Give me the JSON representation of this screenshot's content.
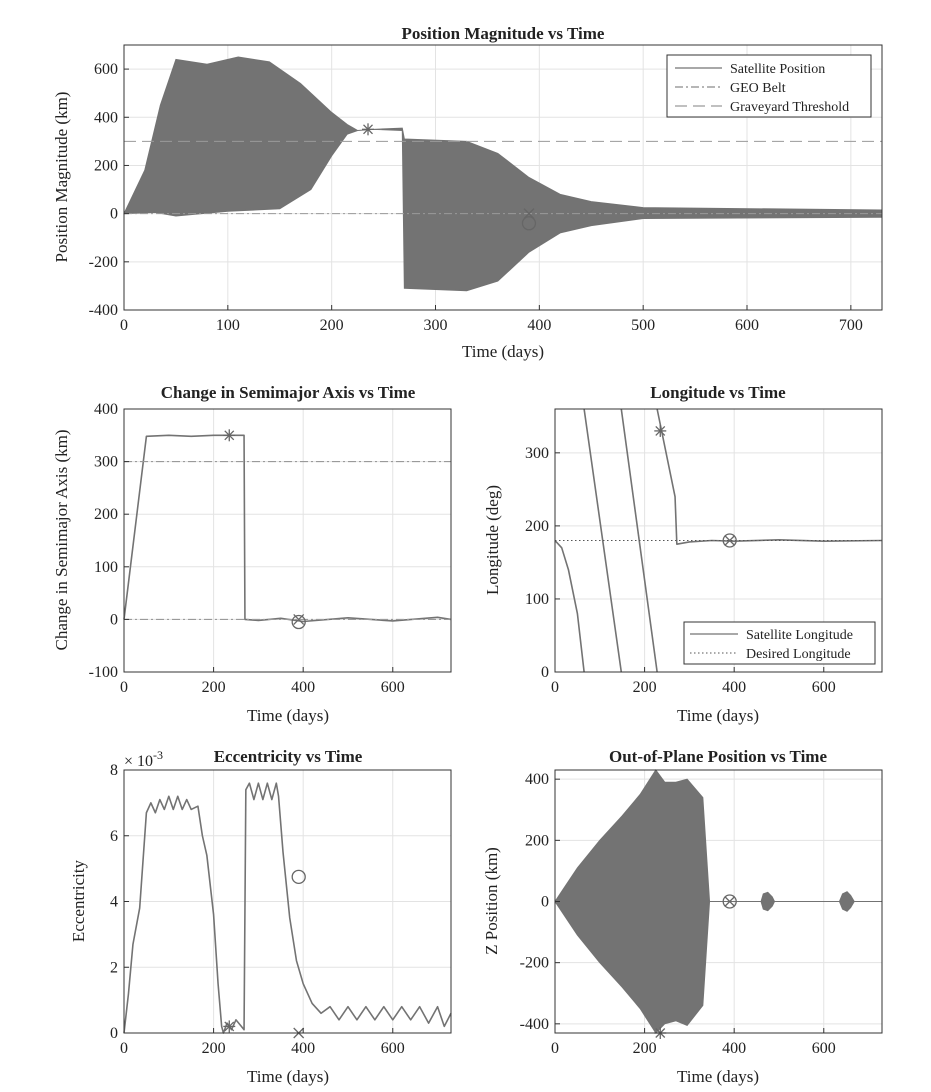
{
  "colors": {
    "series": "#737373",
    "reference": "#9a9a9a",
    "grid": "#e3e3e3",
    "axis": "#333333"
  },
  "chart_data": [
    {
      "id": "position",
      "type": "line",
      "title": "Position Magnitude vs Time",
      "xlabel": "Time (days)",
      "ylabel": "Position Magnitude (km)",
      "xlim": [
        0,
        730
      ],
      "ylim": [
        -400,
        700
      ],
      "xticks": [
        "0",
        "100",
        "200",
        "300",
        "400",
        "500",
        "600",
        "700"
      ],
      "xtick_values": [
        0,
        100,
        200,
        300,
        400,
        500,
        600,
        700
      ],
      "yticks": [
        "-400",
        "-200",
        "0",
        "200",
        "400",
        "600"
      ],
      "ytick_values": [
        -400,
        -200,
        0,
        200,
        400,
        600
      ],
      "grid": true,
      "legend": {
        "placement": "top-right",
        "entries": [
          "Satellite Position",
          "GEO Belt",
          "Graveyard Threshold"
        ]
      },
      "series": [
        {
          "name": "Satellite Position",
          "style": "band",
          "upper": [
            [
              0,
              0
            ],
            [
              20,
              180
            ],
            [
              35,
              450
            ],
            [
              50,
              640
            ],
            [
              80,
              620
            ],
            [
              110,
              650
            ],
            [
              140,
              630
            ],
            [
              170,
              540
            ],
            [
              200,
              420
            ],
            [
              215,
              370
            ],
            [
              225,
              345
            ],
            [
              240,
              350
            ],
            [
              268,
              355
            ],
            [
              270,
              310
            ],
            [
              330,
              300
            ],
            [
              360,
              250
            ],
            [
              390,
              150
            ],
            [
              420,
              80
            ],
            [
              450,
              50
            ],
            [
              500,
              25
            ],
            [
              730,
              15
            ]
          ],
          "lower": [
            [
              0,
              0
            ],
            [
              30,
              5
            ],
            [
              50,
              -10
            ],
            [
              100,
              10
            ],
            [
              150,
              20
            ],
            [
              180,
              100
            ],
            [
              200,
              240
            ],
            [
              215,
              330
            ],
            [
              225,
              345
            ],
            [
              240,
              350
            ],
            [
              268,
              345
            ],
            [
              270,
              -310
            ],
            [
              330,
              -320
            ],
            [
              360,
              -280
            ],
            [
              390,
              -160
            ],
            [
              420,
              -80
            ],
            [
              450,
              -50
            ],
            [
              500,
              -20
            ],
            [
              730,
              -15
            ]
          ]
        },
        {
          "name": "GEO Belt",
          "style": "dashdot",
          "y": 0
        },
        {
          "name": "Graveyard Threshold",
          "style": "dashed",
          "y": 300
        }
      ],
      "markers": [
        {
          "symbol": "asterisk",
          "x": 235,
          "y": 350
        },
        {
          "symbol": "x",
          "x": 390,
          "y": 0
        },
        {
          "symbol": "circle",
          "x": 390,
          "y": -40
        }
      ]
    },
    {
      "id": "semimajor",
      "type": "line",
      "title": "Change in Semimajor Axis vs Time",
      "xlabel": "Time (days)",
      "ylabel": "Change in Semimajor Axis (km)",
      "xlim": [
        0,
        730
      ],
      "ylim": [
        -100,
        400
      ],
      "xticks": [
        "0",
        "200",
        "400",
        "600"
      ],
      "xtick_values": [
        0,
        200,
        400,
        600
      ],
      "yticks": [
        "-100",
        "0",
        "100",
        "200",
        "300",
        "400"
      ],
      "ytick_values": [
        -100,
        0,
        100,
        200,
        300,
        400
      ],
      "grid": true,
      "series": [
        {
          "name": "",
          "style": "line",
          "points": [
            [
              0,
              0
            ],
            [
              50,
              348
            ],
            [
              100,
              350
            ],
            [
              150,
              348
            ],
            [
              200,
              350
            ],
            [
              268,
              350
            ],
            [
              270,
              0
            ],
            [
              300,
              -2
            ],
            [
              350,
              2
            ],
            [
              400,
              -4
            ],
            [
              500,
              3
            ],
            [
              600,
              -3
            ],
            [
              700,
              4
            ],
            [
              730,
              0
            ]
          ]
        },
        {
          "name": "",
          "style": "dashdot",
          "y": 0
        },
        {
          "name": "",
          "style": "dashdot",
          "y": 300
        }
      ],
      "markers": [
        {
          "symbol": "asterisk",
          "x": 235,
          "y": 350
        },
        {
          "symbol": "x",
          "x": 390,
          "y": 0
        },
        {
          "symbol": "circle",
          "x": 390,
          "y": -5
        }
      ]
    },
    {
      "id": "longitude",
      "type": "line",
      "title": "Longitude vs Time",
      "xlabel": "Time (days)",
      "ylabel": "Longitude (deg)",
      "xlim": [
        0,
        730
      ],
      "ylim": [
        0,
        360
      ],
      "xticks": [
        "0",
        "200",
        "400",
        "600"
      ],
      "xtick_values": [
        0,
        200,
        400,
        600
      ],
      "yticks": [
        "0",
        "100",
        "200",
        "300"
      ],
      "ytick_values": [
        0,
        100,
        200,
        300
      ],
      "grid": true,
      "legend": {
        "placement": "bottom-right",
        "entries": [
          "Satellite Longitude",
          "Desired Longitude"
        ]
      },
      "series": [
        {
          "name": "Satellite Longitude",
          "style": "line",
          "segments": [
            [
              [
                0,
                180
              ],
              [
                15,
                170
              ],
              [
                30,
                140
              ],
              [
                50,
                80
              ],
              [
                65,
                0
              ]
            ],
            [
              [
                65,
                360
              ],
              [
                148,
                0
              ]
            ],
            [
              [
                148,
                360
              ],
              [
                228,
                0
              ]
            ],
            [
              [
                228,
                360
              ],
              [
                268,
                240
              ],
              [
                272,
                175
              ],
              [
                300,
                178
              ],
              [
                350,
                180
              ],
              [
                400,
                179
              ],
              [
                500,
                181
              ],
              [
                600,
                179
              ],
              [
                730,
                180
              ]
            ]
          ]
        },
        {
          "name": "Desired Longitude",
          "style": "dotted",
          "y": 180
        }
      ],
      "markers": [
        {
          "symbol": "asterisk",
          "x": 235,
          "y": 330
        },
        {
          "symbol": "x",
          "x": 390,
          "y": 180
        },
        {
          "symbol": "circle",
          "x": 390,
          "y": 180
        }
      ]
    },
    {
      "id": "eccentricity",
      "type": "line",
      "title": "Eccentricity vs Time",
      "exponent_label": "× 10",
      "exponent_power": "-3",
      "xlabel": "Time (days)",
      "ylabel": "Eccentricity",
      "xlim": [
        0,
        730
      ],
      "ylim": [
        0,
        8
      ],
      "xticks": [
        "0",
        "200",
        "400",
        "600"
      ],
      "xtick_values": [
        0,
        200,
        400,
        600
      ],
      "yticks": [
        "0",
        "2",
        "4",
        "6",
        "8"
      ],
      "ytick_values": [
        0,
        2,
        4,
        6,
        8
      ],
      "grid": true,
      "series": [
        {
          "name": "",
          "style": "line",
          "points": [
            [
              0,
              0
            ],
            [
              10,
              1.2
            ],
            [
              20,
              2.7
            ],
            [
              35,
              3.8
            ],
            [
              50,
              6.7
            ],
            [
              60,
              7.0
            ],
            [
              70,
              6.7
            ],
            [
              80,
              7.1
            ],
            [
              90,
              6.8
            ],
            [
              100,
              7.2
            ],
            [
              110,
              6.8
            ],
            [
              120,
              7.2
            ],
            [
              130,
              6.8
            ],
            [
              140,
              7.1
            ],
            [
              150,
              6.8
            ],
            [
              165,
              6.9
            ],
            [
              175,
              6.0
            ],
            [
              185,
              5.4
            ],
            [
              200,
              3.6
            ],
            [
              210,
              1.5
            ],
            [
              218,
              0.2
            ],
            [
              222,
              0
            ],
            [
              230,
              0.3
            ],
            [
              240,
              0.1
            ],
            [
              250,
              0.4
            ],
            [
              262,
              0.2
            ],
            [
              268,
              0.1
            ],
            [
              272,
              7.4
            ],
            [
              280,
              7.6
            ],
            [
              290,
              7.1
            ],
            [
              300,
              7.6
            ],
            [
              310,
              7.1
            ],
            [
              320,
              7.6
            ],
            [
              330,
              7.1
            ],
            [
              340,
              7.6
            ],
            [
              345,
              7.2
            ],
            [
              355,
              5.5
            ],
            [
              370,
              3.5
            ],
            [
              385,
              2.2
            ],
            [
              400,
              1.5
            ],
            [
              420,
              0.9
            ],
            [
              440,
              0.6
            ],
            [
              460,
              0.8
            ],
            [
              480,
              0.4
            ],
            [
              500,
              0.8
            ],
            [
              520,
              0.4
            ],
            [
              540,
              0.8
            ],
            [
              560,
              0.4
            ],
            [
              580,
              0.8
            ],
            [
              600,
              0.4
            ],
            [
              620,
              0.8
            ],
            [
              640,
              0.4
            ],
            [
              660,
              0.8
            ],
            [
              680,
              0.3
            ],
            [
              700,
              0.8
            ],
            [
              715,
              0.2
            ],
            [
              730,
              0.6
            ]
          ]
        }
      ],
      "markers": [
        {
          "symbol": "asterisk",
          "x": 235,
          "y": 0.2
        },
        {
          "symbol": "x",
          "x": 390,
          "y": 0
        },
        {
          "symbol": "circle",
          "x": 390,
          "y": 4.75
        }
      ]
    },
    {
      "id": "outofplane",
      "type": "line",
      "title": "Out-of-Plane Position vs Time",
      "xlabel": "Time (days)",
      "ylabel": "Z Position (km)",
      "xlim": [
        0,
        730
      ],
      "ylim": [
        -430,
        430
      ],
      "xticks": [
        "0",
        "200",
        "400",
        "600"
      ],
      "xtick_values": [
        0,
        200,
        400,
        600
      ],
      "yticks": [
        "-400",
        "-200",
        "0",
        "200",
        "400"
      ],
      "ytick_values": [
        -400,
        -200,
        0,
        200,
        400
      ],
      "grid": true,
      "series": [
        {
          "name": "",
          "style": "band",
          "upper": [
            [
              0,
              0
            ],
            [
              50,
              110
            ],
            [
              100,
              200
            ],
            [
              150,
              280
            ],
            [
              190,
              350
            ],
            [
              225,
              430
            ],
            [
              245,
              390
            ],
            [
              270,
              390
            ],
            [
              295,
              400
            ],
            [
              330,
              340
            ],
            [
              345,
              0
            ],
            [
              730,
              0
            ]
          ],
          "lower": [
            [
              0,
              0
            ],
            [
              50,
              -110
            ],
            [
              100,
              -200
            ],
            [
              150,
              -280
            ],
            [
              190,
              -350
            ],
            [
              225,
              -430
            ],
            [
              245,
              -400
            ],
            [
              270,
              -390
            ],
            [
              295,
              -405
            ],
            [
              330,
              -340
            ],
            [
              345,
              0
            ],
            [
              730,
              0
            ]
          ]
        },
        {
          "name": "",
          "style": "band",
          "upper": [
            [
              460,
              0
            ],
            [
              465,
              25
            ],
            [
              475,
              30
            ],
            [
              485,
              15
            ],
            [
              490,
              0
            ]
          ],
          "lower": [
            [
              460,
              0
            ],
            [
              465,
              -25
            ],
            [
              475,
              -30
            ],
            [
              485,
              -15
            ],
            [
              490,
              0
            ]
          ]
        },
        {
          "name": "",
          "style": "band",
          "upper": [
            [
              635,
              0
            ],
            [
              642,
              25
            ],
            [
              652,
              32
            ],
            [
              660,
              20
            ],
            [
              668,
              0
            ]
          ],
          "lower": [
            [
              635,
              0
            ],
            [
              642,
              -25
            ],
            [
              652,
              -32
            ],
            [
              660,
              -20
            ],
            [
              668,
              0
            ]
          ]
        }
      ],
      "markers": [
        {
          "symbol": "asterisk",
          "x": 235,
          "y": -430
        },
        {
          "symbol": "x",
          "x": 390,
          "y": 0
        },
        {
          "symbol": "circle",
          "x": 390,
          "y": 0
        }
      ]
    }
  ]
}
